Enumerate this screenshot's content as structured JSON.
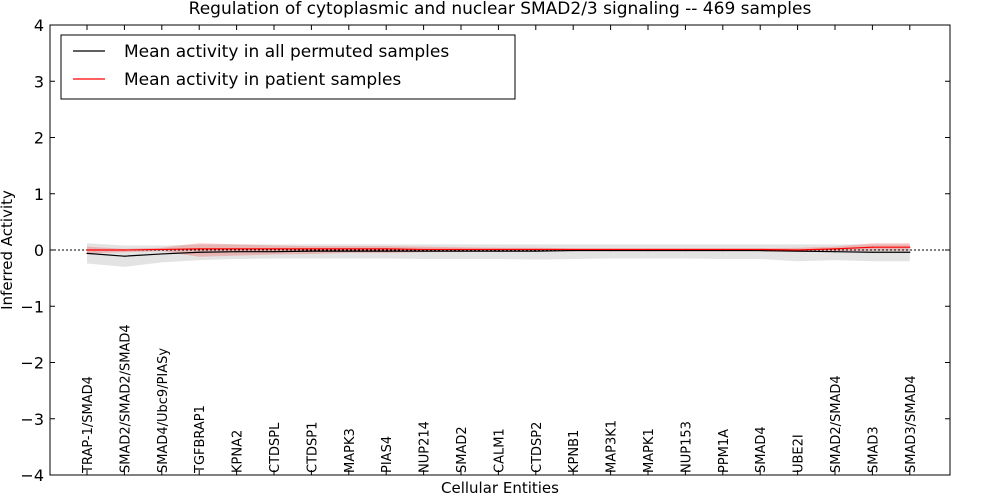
{
  "chart_data": {
    "type": "line",
    "title": "Regulation of cytoplasmic and nuclear SMAD2/3 signaling -- 469 samples",
    "xlabel": "Cellular Entities",
    "ylabel": "Inferred Activity",
    "ylim": [
      -4,
      4
    ],
    "yticks": [
      4,
      3,
      2,
      1,
      0,
      -1,
      -2,
      -3,
      -4
    ],
    "ytick_labels": [
      "4",
      "3",
      "2",
      "1",
      "0",
      "−1",
      "−2",
      "−3",
      "−4"
    ],
    "legend_position": "top-left",
    "categories": [
      "TRAP-1/SMAD4",
      "SMAD2/SMAD2/SMAD4",
      "SMAD4/Ubc9/PIASy",
      "TGFBRAP1",
      "KPNA2",
      "CTDSPL",
      "CTDSP1",
      "MAPK3",
      "PIAS4",
      "NUP214",
      "SMAD2",
      "CALM1",
      "CTDSP2",
      "KPNB1",
      "MAP3K1",
      "MAPK1",
      "NUP153",
      "PPM1A",
      "SMAD4",
      "UBE2I",
      "SMAD2/SMAD4",
      "SMAD3",
      "SMAD3/SMAD4"
    ],
    "series": [
      {
        "name": "Mean activity in all permuted samples",
        "color": "#000000",
        "values": [
          -0.06,
          -0.11,
          -0.07,
          -0.04,
          -0.03,
          -0.03,
          -0.02,
          -0.02,
          -0.02,
          -0.02,
          -0.02,
          -0.02,
          -0.02,
          -0.01,
          -0.01,
          -0.01,
          -0.01,
          -0.01,
          -0.01,
          -0.02,
          -0.03,
          -0.04,
          -0.04
        ],
        "upper": [
          0.12,
          0.08,
          0.08,
          0.1,
          0.1,
          0.1,
          0.1,
          0.1,
          0.1,
          0.1,
          0.1,
          0.1,
          0.1,
          0.1,
          0.1,
          0.1,
          0.1,
          0.1,
          0.1,
          0.1,
          0.1,
          0.1,
          0.1
        ],
        "lower": [
          -0.24,
          -0.3,
          -0.22,
          -0.18,
          -0.16,
          -0.15,
          -0.15,
          -0.15,
          -0.15,
          -0.16,
          -0.16,
          -0.16,
          -0.17,
          -0.16,
          -0.15,
          -0.15,
          -0.15,
          -0.16,
          -0.16,
          -0.2,
          -0.18,
          -0.2,
          -0.2
        ]
      },
      {
        "name": "Mean activity in patient samples",
        "color": "#ff0000",
        "values": [
          0.0,
          0.0,
          0.01,
          0.02,
          0.02,
          0.02,
          0.02,
          0.02,
          0.02,
          0.01,
          0.01,
          0.01,
          0.01,
          0.01,
          0.01,
          0.01,
          0.01,
          0.01,
          0.01,
          0.0,
          0.02,
          0.05,
          0.05
        ],
        "upper": [
          0.06,
          0.02,
          0.04,
          0.12,
          0.1,
          0.08,
          0.07,
          0.07,
          0.07,
          0.06,
          0.05,
          0.04,
          0.04,
          0.03,
          0.03,
          0.03,
          0.03,
          0.03,
          0.03,
          0.04,
          0.06,
          0.12,
          0.12
        ],
        "lower": [
          -0.06,
          -0.04,
          -0.02,
          -0.12,
          -0.1,
          -0.08,
          -0.07,
          -0.05,
          -0.05,
          -0.04,
          -0.03,
          -0.03,
          -0.02,
          -0.02,
          -0.02,
          -0.02,
          -0.02,
          -0.02,
          -0.02,
          -0.03,
          -0.02,
          -0.01,
          -0.01
        ]
      }
    ]
  }
}
